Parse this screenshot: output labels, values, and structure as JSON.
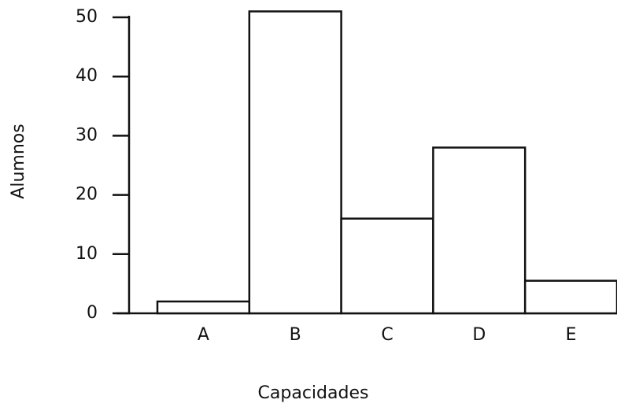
{
  "chart_data": {
    "type": "bar",
    "categories": [
      "A",
      "B",
      "C",
      "D",
      "E"
    ],
    "values": [
      2,
      51,
      16,
      28,
      5.5
    ],
    "color": "#ffffff",
    "ylim": [
      0,
      50
    ],
    "yticks": [
      0,
      10,
      20,
      30,
      40,
      50
    ],
    "ylabel": "Alumnos",
    "xlabel": "Capacidades",
    "grid": false
  }
}
